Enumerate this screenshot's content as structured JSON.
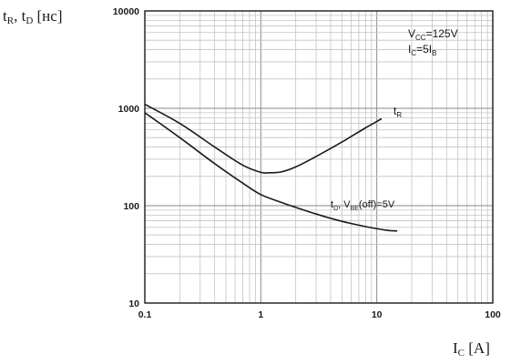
{
  "chart_data": {
    "type": "line",
    "ylabel": {
      "main": "t",
      "sub1": "R",
      "sep": ", t",
      "sub2": "D",
      "unit": " [нс]"
    },
    "xlabel": {
      "main": "I",
      "sub": "C",
      "unit": " [A]"
    },
    "x_scale": "log",
    "y_scale": "log",
    "xlim": [
      0.1,
      100
    ],
    "ylim": [
      10,
      10000
    ],
    "x_ticks": [
      0.1,
      1,
      10,
      100
    ],
    "x_tick_labels": [
      "0.1",
      "1",
      "10",
      "100"
    ],
    "y_ticks": [
      10,
      100,
      1000,
      10000
    ],
    "y_tick_labels": [
      "10",
      "100",
      "1000",
      "10000"
    ],
    "grid": true,
    "annotations": {
      "vcc": {
        "main": "V",
        "sub": "CC",
        "rest": "=125V"
      },
      "ic": {
        "main": "I",
        "sub": "C",
        "mid": "=5I",
        "sub2": "B"
      }
    },
    "series": [
      {
        "label_main": "t",
        "label_sub": "R",
        "color": "#1a1a1a",
        "x": [
          0.1,
          0.2,
          0.4,
          0.7,
          1.0,
          1.2,
          1.5,
          2.0,
          3.0,
          5.0,
          8.0,
          11.0
        ],
        "y": [
          1100,
          700,
          400,
          260,
          220,
          218,
          222,
          250,
          320,
          450,
          630,
          780
        ]
      },
      {
        "label_main": "t",
        "label_sub": "D",
        "label_mid": ", V",
        "label_sub2": "BE",
        "label_rest": "(off)=5V",
        "color": "#1a1a1a",
        "x": [
          0.1,
          0.2,
          0.4,
          0.7,
          1.0,
          1.5,
          2.0,
          3.0,
          5.0,
          8.0,
          12.0,
          15.0
        ],
        "y": [
          900,
          500,
          270,
          170,
          130,
          108,
          96,
          82,
          69,
          61,
          56,
          55
        ]
      }
    ]
  }
}
